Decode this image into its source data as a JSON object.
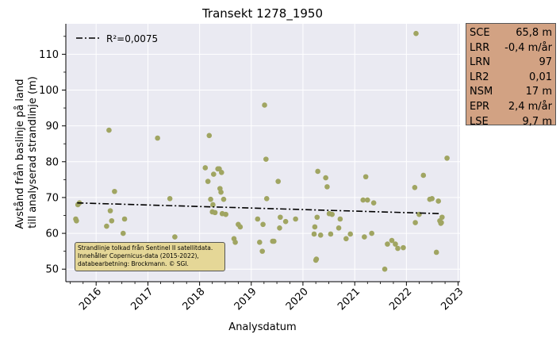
{
  "chart_data": {
    "type": "scatter",
    "title": "Transekt 1278_1950",
    "xlabel": "Analysdatum",
    "ylabel_lines": [
      "Avstånd från baslinje på land",
      "till analyserad strandlinje (m)"
    ],
    "xlim": [
      "2015-06-01",
      "2023-01-15"
    ],
    "ylim": [
      46.5,
      118.5
    ],
    "x_ticks": [
      "2016",
      "2017",
      "2018",
      "2019",
      "2020",
      "2021",
      "2022",
      "2023"
    ],
    "y_ticks": [
      50,
      60,
      70,
      80,
      90,
      100,
      110
    ],
    "grid": true,
    "legend_placement": "top-left",
    "trend_label": "R²=0,0075",
    "trend_line": {
      "x": [
        "2015-08-20",
        "2022-09-01"
      ],
      "y": [
        68.5,
        65.5
      ]
    },
    "points": [
      {
        "x": "2015-08-10",
        "y": 64.0
      },
      {
        "x": "2015-08-15",
        "y": 63.5
      },
      {
        "x": "2015-08-25",
        "y": 68.0
      },
      {
        "x": "2015-09-05",
        "y": 68.5
      },
      {
        "x": "2016-03-15",
        "y": 62.0
      },
      {
        "x": "2016-04-01",
        "y": 88.8
      },
      {
        "x": "2016-04-10",
        "y": 66.3
      },
      {
        "x": "2016-04-20",
        "y": 63.5
      },
      {
        "x": "2016-05-10",
        "y": 71.7
      },
      {
        "x": "2016-07-10",
        "y": 60.0
      },
      {
        "x": "2016-07-20",
        "y": 64.0
      },
      {
        "x": "2017-03-10",
        "y": 86.6
      },
      {
        "x": "2017-06-05",
        "y": 69.7
      },
      {
        "x": "2017-07-10",
        "y": 59.0
      },
      {
        "x": "2018-02-10",
        "y": 78.3
      },
      {
        "x": "2018-03-01",
        "y": 74.5
      },
      {
        "x": "2018-03-10",
        "y": 87.3
      },
      {
        "x": "2018-03-20",
        "y": 69.5
      },
      {
        "x": "2018-04-01",
        "y": 66.0
      },
      {
        "x": "2018-04-05",
        "y": 68.0
      },
      {
        "x": "2018-04-10",
        "y": 76.5
      },
      {
        "x": "2018-04-20",
        "y": 65.8
      },
      {
        "x": "2018-05-10",
        "y": 78.0
      },
      {
        "x": "2018-05-20",
        "y": 78.0
      },
      {
        "x": "2018-05-25",
        "y": 72.5
      },
      {
        "x": "2018-06-01",
        "y": 71.5
      },
      {
        "x": "2018-06-05",
        "y": 77.0
      },
      {
        "x": "2018-06-10",
        "y": 65.5
      },
      {
        "x": "2018-06-20",
        "y": 69.5
      },
      {
        "x": "2018-07-05",
        "y": 65.3
      },
      {
        "x": "2018-09-01",
        "y": 58.5
      },
      {
        "x": "2018-09-10",
        "y": 57.5
      },
      {
        "x": "2018-10-01",
        "y": 62.5
      },
      {
        "x": "2018-10-15",
        "y": 61.8
      },
      {
        "x": "2019-02-15",
        "y": 64.0
      },
      {
        "x": "2019-03-01",
        "y": 57.5
      },
      {
        "x": "2019-03-20",
        "y": 55.0
      },
      {
        "x": "2019-03-25",
        "y": 62.5
      },
      {
        "x": "2019-04-05",
        "y": 95.8
      },
      {
        "x": "2019-04-15",
        "y": 80.7
      },
      {
        "x": "2019-04-20",
        "y": 69.7
      },
      {
        "x": "2019-06-01",
        "y": 57.8
      },
      {
        "x": "2019-06-10",
        "y": 57.8
      },
      {
        "x": "2019-07-10",
        "y": 74.5
      },
      {
        "x": "2019-07-20",
        "y": 61.5
      },
      {
        "x": "2019-07-25",
        "y": 64.5
      },
      {
        "x": "2019-09-01",
        "y": 63.3
      },
      {
        "x": "2019-11-10",
        "y": 64.0
      },
      {
        "x": "2020-03-20",
        "y": 59.8
      },
      {
        "x": "2020-03-25",
        "y": 61.8
      },
      {
        "x": "2020-04-01",
        "y": 52.5
      },
      {
        "x": "2020-04-05",
        "y": 52.8
      },
      {
        "x": "2020-04-10",
        "y": 64.5
      },
      {
        "x": "2020-04-15",
        "y": 77.3
      },
      {
        "x": "2020-05-05",
        "y": 59.5
      },
      {
        "x": "2020-06-10",
        "y": 75.5
      },
      {
        "x": "2020-06-20",
        "y": 73.0
      },
      {
        "x": "2020-07-05",
        "y": 65.5
      },
      {
        "x": "2020-07-15",
        "y": 59.8
      },
      {
        "x": "2020-07-25",
        "y": 65.3
      },
      {
        "x": "2020-09-10",
        "y": 61.5
      },
      {
        "x": "2020-09-20",
        "y": 64.0
      },
      {
        "x": "2020-11-01",
        "y": 58.5
      },
      {
        "x": "2020-12-01",
        "y": 59.8
      },
      {
        "x": "2021-03-01",
        "y": 69.3
      },
      {
        "x": "2021-03-10",
        "y": 59.0
      },
      {
        "x": "2021-03-20",
        "y": 75.8
      },
      {
        "x": "2021-04-01",
        "y": 69.3
      },
      {
        "x": "2021-05-01",
        "y": 60.0
      },
      {
        "x": "2021-05-15",
        "y": 68.5
      },
      {
        "x": "2021-08-01",
        "y": 50.0
      },
      {
        "x": "2021-08-20",
        "y": 57.0
      },
      {
        "x": "2021-09-20",
        "y": 58.0
      },
      {
        "x": "2021-10-15",
        "y": 57.0
      },
      {
        "x": "2021-11-01",
        "y": 55.8
      },
      {
        "x": "2021-12-10",
        "y": 56.0
      },
      {
        "x": "2022-03-01",
        "y": 72.8
      },
      {
        "x": "2022-03-05",
        "y": 63.0
      },
      {
        "x": "2022-03-10",
        "y": 115.8
      },
      {
        "x": "2022-04-01",
        "y": 65.3
      },
      {
        "x": "2022-05-01",
        "y": 76.2
      },
      {
        "x": "2022-06-15",
        "y": 69.5
      },
      {
        "x": "2022-07-01",
        "y": 69.7
      },
      {
        "x": "2022-08-01",
        "y": 54.7
      },
      {
        "x": "2022-08-15",
        "y": 69.0
      },
      {
        "x": "2022-08-25",
        "y": 63.5
      },
      {
        "x": "2022-09-01",
        "y": 62.8
      },
      {
        "x": "2022-09-05",
        "y": 63.0
      },
      {
        "x": "2022-09-10",
        "y": 64.5
      },
      {
        "x": "2022-10-15",
        "y": 81.0
      }
    ]
  },
  "stats": [
    {
      "key": "SCE",
      "value": "65,8 m"
    },
    {
      "key": "LRR",
      "value": "-0,4 m/år"
    },
    {
      "key": "LRN",
      "value": "97"
    },
    {
      "key": "LR2",
      "value": "0,01"
    },
    {
      "key": "NSM",
      "value": "17 m"
    },
    {
      "key": "EPR",
      "value": "2,4 m/år"
    },
    {
      "key": "LSE",
      "value": "9,7 m"
    }
  ],
  "source_note": [
    "Strandlinje tolkad från Sentinel II satellitdata.",
    "Innehåller Copernicus-data (2015-2022),",
    "databearbetning: Brockmann. © SGI."
  ],
  "colors": {
    "point": "#a0a562",
    "plot_bg": "#eaeaf2",
    "trend": "#000000",
    "stats_bg": "#d2a283",
    "source_bg": "#e5d797"
  }
}
